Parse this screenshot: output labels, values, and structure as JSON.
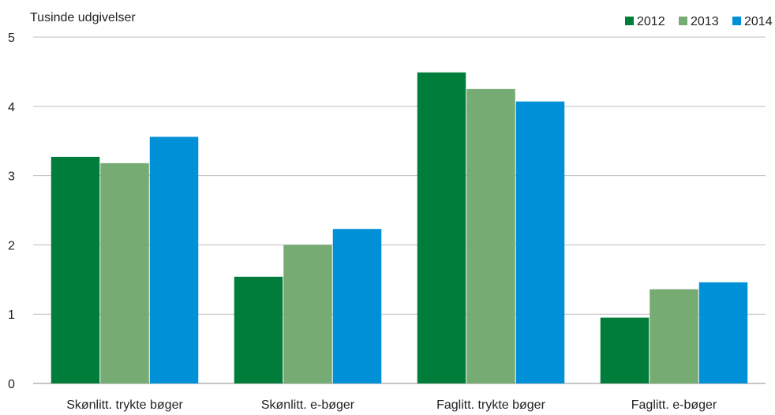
{
  "chart_data": {
    "type": "bar",
    "ylabel": "Tusinde udgivelser",
    "ylim": [
      0,
      5
    ],
    "yticks": [
      "0",
      "1",
      "2",
      "3",
      "4",
      "5"
    ],
    "categories": [
      "Skønlitt. trykte bøger",
      "Skønlitt. e-bøger",
      "Faglitt. trykte bøger",
      "Faglitt. e-bøger"
    ],
    "series": [
      {
        "name": "2012",
        "color": "#007d3a",
        "values": [
          3.27,
          1.54,
          4.49,
          0.95
        ]
      },
      {
        "name": "2013",
        "color": "#76ab73",
        "values": [
          3.18,
          2.0,
          4.25,
          1.36
        ]
      },
      {
        "name": "2014",
        "color": "#0090d8",
        "values": [
          3.56,
          2.23,
          4.07,
          1.46
        ]
      }
    ],
    "grid": true,
    "legend": "top-right"
  }
}
